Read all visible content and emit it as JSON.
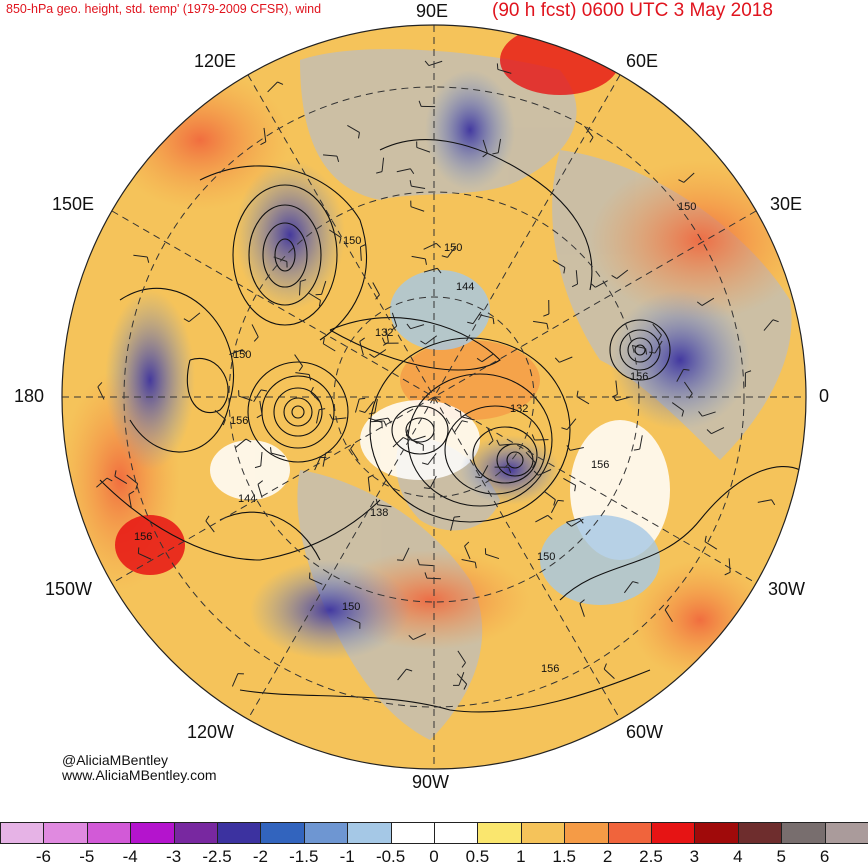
{
  "header": {
    "left_title": "850-hPa geo. height, std. temp' (1979-2009 CFSR), wind",
    "right_title": "(90 h fcst) 0600 UTC 3 May 2018"
  },
  "longitude_labels": {
    "lon_90e": "90E",
    "lon_60e": "60E",
    "lon_30e": "30E",
    "lon_0": "0",
    "lon_30w": "30W",
    "lon_60w": "60W",
    "lon_90w": "90W",
    "lon_120w": "120W",
    "lon_150w": "150W",
    "lon_180": "180",
    "lon_150e": "150E",
    "lon_120e": "120E"
  },
  "contour_labels": [
    "150",
    "150",
    "144",
    "132",
    "150",
    "156",
    "132",
    "156",
    "144",
    "138",
    "156",
    "150",
    "156",
    "150",
    "150",
    "156"
  ],
  "credits": {
    "handle": "@AliciaMBentley",
    "website": "www.AliciaMBentley.com"
  },
  "colorbar": {
    "colors": [
      "#e6b3e6",
      "#e08ae0",
      "#d25ad7",
      "#b414cd",
      "#7828a0",
      "#3c32a0",
      "#3264be",
      "#6e96d2",
      "#a5c8e6",
      "#ffffff",
      "#ffffff",
      "#fae66e",
      "#f5c35a",
      "#f59b46",
      "#f0643c",
      "#e61414",
      "#a00a0a",
      "#6e2d2d",
      "#786e6e",
      "#aa9b9b"
    ],
    "tick_labels": [
      "-6",
      "-5",
      "-4",
      "-3",
      "-2.5",
      "-2",
      "-1.5",
      "-1",
      "-0.5",
      "0",
      "0.5",
      "1",
      "1.5",
      "2",
      "2.5",
      "3",
      "4",
      "5",
      "6"
    ]
  }
}
